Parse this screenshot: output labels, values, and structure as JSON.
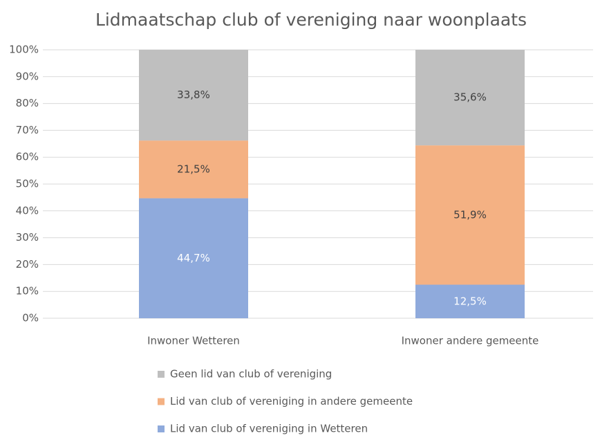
{
  "chart_data": {
    "type": "stacked_bar",
    "title": "Lidmaatschap club of vereniging naar woonplaats",
    "categories": [
      "Inwoner Wetteren",
      "Inwoner andere gemeente"
    ],
    "series": [
      {
        "name": "Lid van club of vereniging in Wetteren",
        "color": "#8faadc",
        "label_color": "#ffffff",
        "values": [
          44.7,
          12.5
        ],
        "value_labels": [
          "44,7%",
          "12,5%"
        ]
      },
      {
        "name": "Lid van club of vereniging in andere gemeente",
        "color": "#f4b183",
        "label_color": "#404040",
        "values": [
          21.5,
          51.9
        ],
        "value_labels": [
          "21,5%",
          "51,9%"
        ]
      },
      {
        "name": "Geen lid van club of vereniging",
        "color": "#bfbfbf",
        "label_color": "#404040",
        "values": [
          33.8,
          35.6
        ],
        "value_labels": [
          "33,8%",
          "35,6%"
        ]
      }
    ],
    "ylim": [
      0,
      100
    ],
    "yticks": [
      {
        "value": 0,
        "label": "0%"
      },
      {
        "value": 10,
        "label": "10%"
      },
      {
        "value": 20,
        "label": "20%"
      },
      {
        "value": 30,
        "label": "30%"
      },
      {
        "value": 40,
        "label": "40%"
      },
      {
        "value": 50,
        "label": "50%"
      },
      {
        "value": 60,
        "label": "60%"
      },
      {
        "value": 70,
        "label": "70%"
      },
      {
        "value": 80,
        "label": "80%"
      },
      {
        "value": 90,
        "label": "90%"
      },
      {
        "value": 100,
        "label": "100%"
      }
    ],
    "grid": true,
    "legend": "bottom"
  }
}
